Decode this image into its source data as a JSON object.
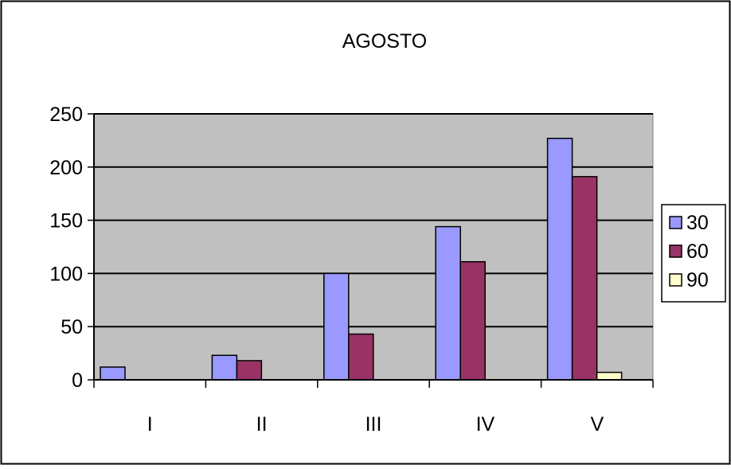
{
  "chart_data": {
    "type": "bar",
    "title": "AGOSTO",
    "categories": [
      "I",
      "II",
      "III",
      "IV",
      "V"
    ],
    "series": [
      {
        "name": "30",
        "color": "#9999ff",
        "values": [
          12,
          23,
          100,
          144,
          227
        ]
      },
      {
        "name": "60",
        "color": "#993366",
        "values": [
          0,
          18,
          43,
          111,
          191
        ]
      },
      {
        "name": "90",
        "color": "#ffffcc",
        "values": [
          0,
          0,
          0,
          0,
          7
        ]
      }
    ],
    "ylim": [
      0,
      250
    ],
    "yticks": [
      0,
      50,
      100,
      150,
      200,
      250
    ],
    "grid": true,
    "plot_background": "#c0c0c0",
    "legend_position": "right"
  }
}
